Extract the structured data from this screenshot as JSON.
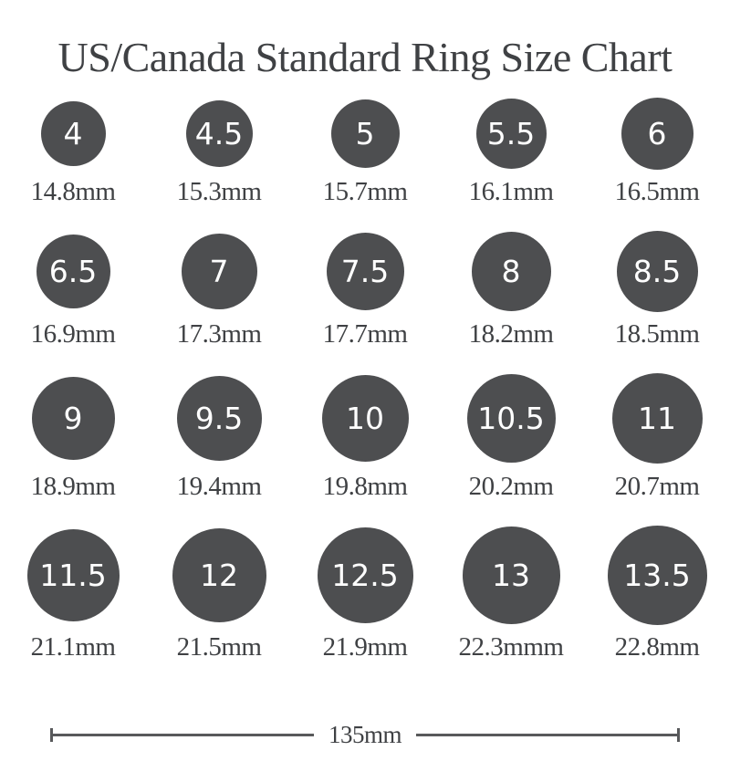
{
  "title": "US/Canada Standard Ring Size Chart",
  "colors": {
    "background": "#ffffff",
    "circle": "#4d4e50",
    "circle_text": "#ffffff",
    "text": "#3f4144",
    "line": "#58595b"
  },
  "rows": [
    {
      "items": [
        {
          "size": "4",
          "label": "14.8mm",
          "mm": 14.8
        },
        {
          "size": "4.5",
          "label": "15.3mm",
          "mm": 15.3
        },
        {
          "size": "5",
          "label": "15.7mm",
          "mm": 15.7
        },
        {
          "size": "5.5",
          "label": "16.1mm",
          "mm": 16.1
        },
        {
          "size": "6",
          "label": "16.5mm",
          "mm": 16.5
        }
      ]
    },
    {
      "items": [
        {
          "size": "6.5",
          "label": "16.9mm",
          "mm": 16.9
        },
        {
          "size": "7",
          "label": "17.3mm",
          "mm": 17.3
        },
        {
          "size": "7.5",
          "label": "17.7mm",
          "mm": 17.7
        },
        {
          "size": "8",
          "label": "18.2mm",
          "mm": 18.2
        },
        {
          "size": "8.5",
          "label": "18.5mm",
          "mm": 18.5
        }
      ]
    },
    {
      "items": [
        {
          "size": "9",
          "label": "18.9mm",
          "mm": 18.9
        },
        {
          "size": "9.5",
          "label": "19.4mm",
          "mm": 19.4
        },
        {
          "size": "10",
          "label": "19.8mm",
          "mm": 19.8
        },
        {
          "size": "10.5",
          "label": "20.2mm",
          "mm": 20.2
        },
        {
          "size": "11",
          "label": "20.7mm",
          "mm": 20.7
        }
      ]
    },
    {
      "items": [
        {
          "size": "11.5",
          "label": "21.1mm",
          "mm": 21.1
        },
        {
          "size": "12",
          "label": "21.5mm",
          "mm": 21.5
        },
        {
          "size": "12.5",
          "label": "21.9mm",
          "mm": 21.9
        },
        {
          "size": "13",
          "label": "22.3mmm",
          "mm": 22.3
        },
        {
          "size": "13.5",
          "label": "22.8mm",
          "mm": 22.8
        }
      ]
    }
  ],
  "scale_bar": {
    "label": "135mm"
  }
}
